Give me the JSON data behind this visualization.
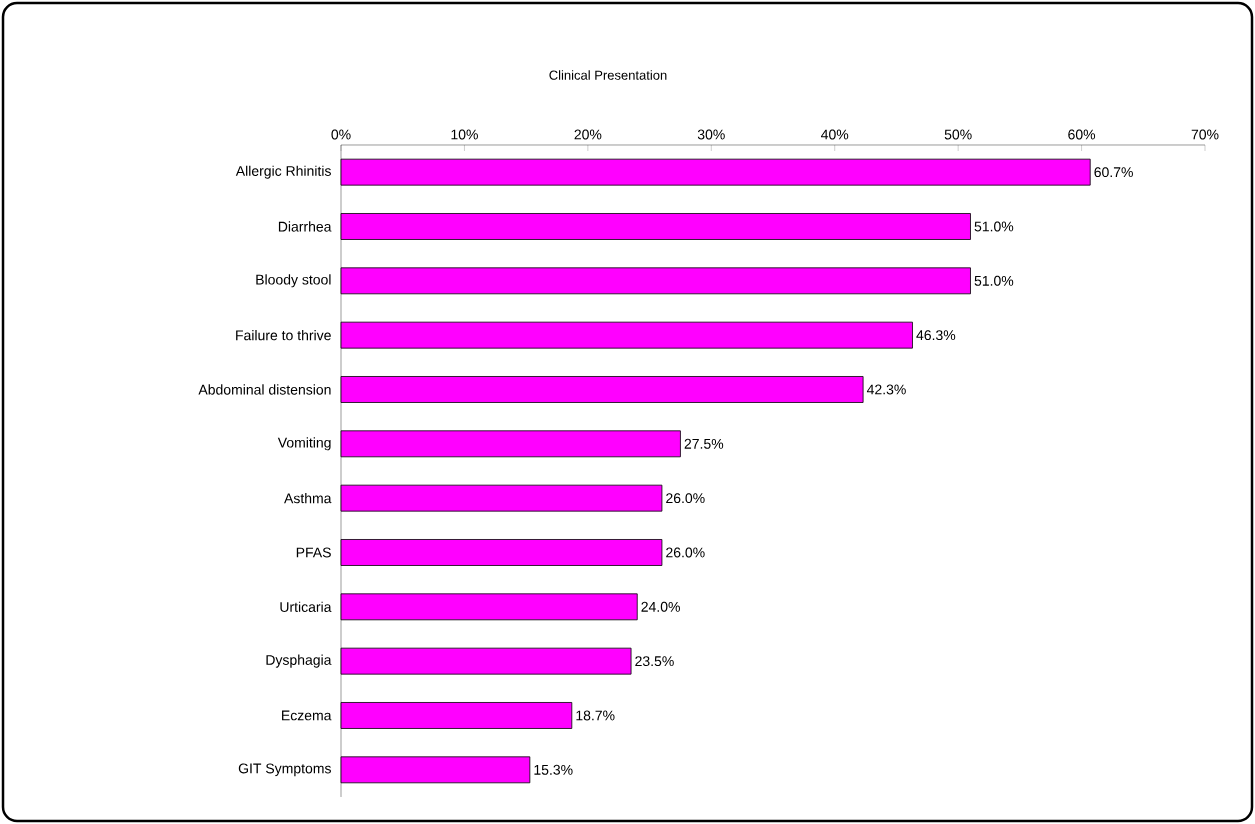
{
  "chart_data": {
    "type": "bar",
    "orientation": "horizontal",
    "title": "Clinical Presentation",
    "categories": [
      "Allergic Rhinitis",
      "Diarrhea",
      "Bloody stool",
      "Failure to thrive",
      "Abdominal distension",
      "Vomiting",
      "Asthma",
      "PFAS",
      "Urticaria",
      "Dysphagia",
      "Eczema",
      "GIT Symptoms"
    ],
    "values": [
      60.7,
      51.0,
      51.0,
      46.3,
      42.3,
      27.5,
      26.0,
      26.0,
      24.0,
      23.5,
      18.7,
      15.3
    ],
    "value_labels": [
      "60.7%",
      "51.0%",
      "51.0%",
      "46.3%",
      "42.3%",
      "27.5%",
      "26.0%",
      "26.0%",
      "24.0%",
      "23.5%",
      "18.7%",
      "15.3%"
    ],
    "color": "#ff00ff",
    "xlim": [
      0,
      70
    ],
    "xticks": [
      {
        "value": 0,
        "label": "0%"
      },
      {
        "value": 10,
        "label": "10%"
      },
      {
        "value": 20,
        "label": "20%"
      },
      {
        "value": 30,
        "label": "30%"
      },
      {
        "value": 40,
        "label": "40%"
      },
      {
        "value": 50,
        "label": "50%"
      },
      {
        "value": 60,
        "label": "60%"
      },
      {
        "value": 70,
        "label": "70%"
      }
    ]
  }
}
